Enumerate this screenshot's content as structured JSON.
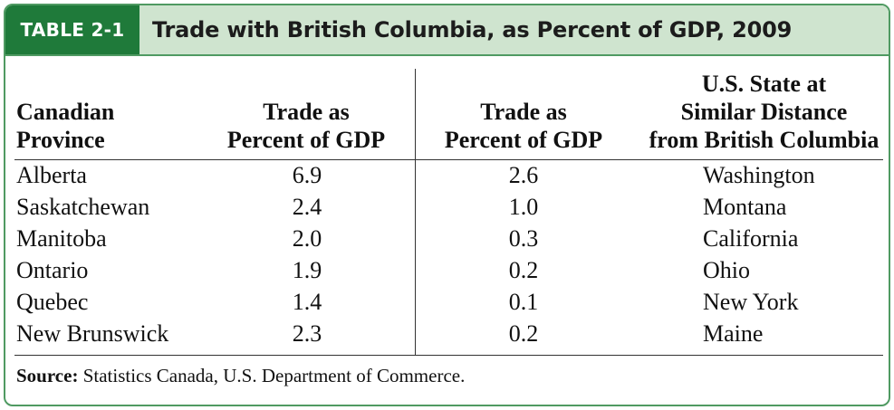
{
  "table_label": "TABLE 2-1",
  "title": "Trade with British Columbia, as Percent of GDP, 2009",
  "headers": {
    "province": [
      "Canadian",
      "Province"
    ],
    "trade_ca": [
      "Trade as",
      "Percent of GDP"
    ],
    "trade_us": [
      "Trade as",
      "Percent of GDP"
    ],
    "state": [
      "U.S. State at",
      "Similar Distance",
      "from British Columbia"
    ]
  },
  "rows": [
    {
      "province": "Alberta",
      "trade_ca": "6.9",
      "trade_us": "2.6",
      "state": "Washington"
    },
    {
      "province": "Saskatchewan",
      "trade_ca": "2.4",
      "trade_us": "1.0",
      "state": "Montana"
    },
    {
      "province": "Manitoba",
      "trade_ca": "2.0",
      "trade_us": "0.3",
      "state": "California"
    },
    {
      "province": "Ontario",
      "trade_ca": "1.9",
      "trade_us": "0.2",
      "state": "Ohio"
    },
    {
      "province": "Quebec",
      "trade_ca": "1.4",
      "trade_us": "0.1",
      "state": "New York"
    },
    {
      "province": "New Brunswick",
      "trade_ca": "2.3",
      "trade_us": "0.2",
      "state": "Maine"
    }
  ],
  "source": {
    "label": "Source:",
    "text": " Statistics Canada, U.S. Department of Commerce."
  },
  "colors": {
    "frame": "#4f9a62",
    "tag_bg": "#1f7a3a",
    "header_bg": "#cfe4cf"
  }
}
